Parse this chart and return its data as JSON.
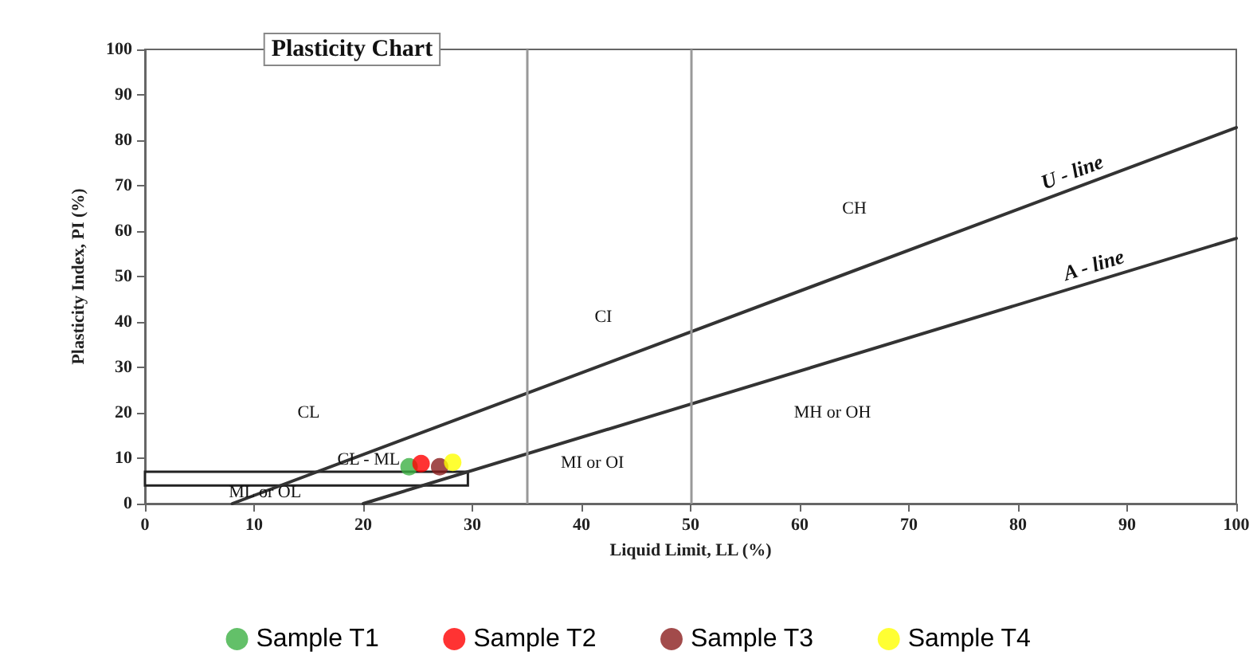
{
  "chart_data": {
    "type": "scatter",
    "title": "Plasticity Chart",
    "xlabel": "Liquid Limit, LL (%)",
    "ylabel": "Plasticity Index, PI (%)",
    "xlim": [
      0,
      100
    ],
    "ylim": [
      0,
      100
    ],
    "xticks": [
      0,
      10,
      20,
      30,
      40,
      50,
      60,
      70,
      80,
      90,
      100
    ],
    "yticks": [
      0,
      10,
      20,
      30,
      40,
      50,
      60,
      70,
      80,
      90,
      100
    ],
    "grid": false,
    "legend": "bottom",
    "marker": "circle",
    "series": [
      {
        "name": "Sample T1",
        "color": "#3cb043",
        "x": [
          24.2
        ],
        "values": [
          8.1
        ]
      },
      {
        "name": "Sample T2",
        "color": "#ff0000",
        "x": [
          25.3
        ],
        "values": [
          8.8
        ]
      },
      {
        "name": "Sample T3",
        "color": "#8b1e1e",
        "x": [
          27.0
        ],
        "values": [
          8.1
        ]
      },
      {
        "name": "Sample T4",
        "color": "#ffff00",
        "x": [
          28.2
        ],
        "values": [
          9.1
        ]
      },
      {
        "name": "U - line",
        "type": "line",
        "color": "#333333",
        "x": [
          8,
          100
        ],
        "values": [
          0,
          82.8
        ],
        "marker": "none"
      },
      {
        "name": "A - line",
        "type": "line",
        "color": "#333333",
        "x": [
          20,
          100
        ],
        "values": [
          0,
          58.4
        ],
        "marker": "none"
      }
    ],
    "ref_lines": [
      {
        "axis": "x",
        "value": 35,
        "color": "#999999"
      },
      {
        "axis": "x",
        "value": 50,
        "color": "#999999"
      }
    ],
    "bands": [
      {
        "axis": "y",
        "from": 4,
        "to": 7
      }
    ],
    "annotations": [
      "CL",
      "CI",
      "CH",
      "MH or OH",
      "MI or OI",
      "CL - ML",
      "ML or OL"
    ]
  }
}
